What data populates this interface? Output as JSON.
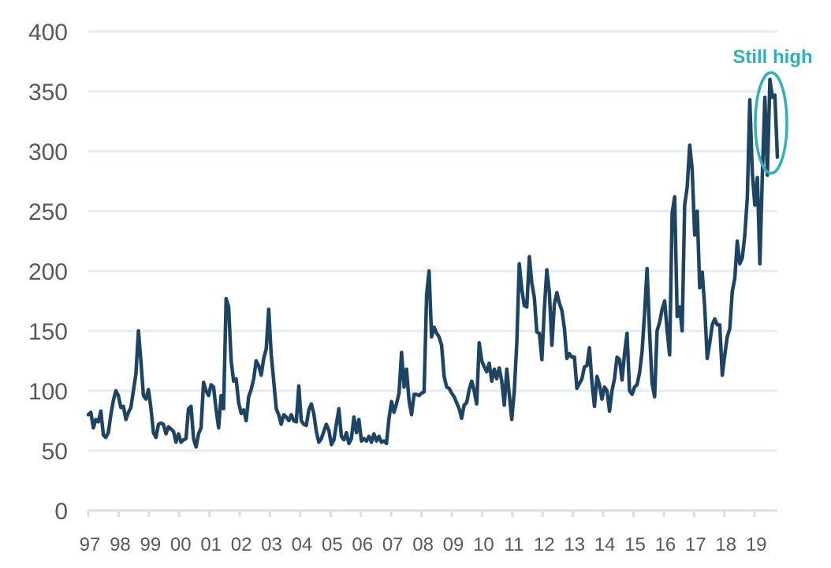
{
  "chart_data": {
    "type": "line",
    "title": "",
    "xlabel": "",
    "ylabel": "",
    "ylim": [
      0,
      400
    ],
    "yticks": [
      0,
      50,
      100,
      150,
      200,
      250,
      300,
      350,
      400
    ],
    "xtick_labels": [
      "97",
      "98",
      "99",
      "00",
      "01",
      "02",
      "03",
      "04",
      "05",
      "06",
      "07",
      "08",
      "09",
      "10",
      "11",
      "12",
      "13",
      "14",
      "15",
      "16",
      "17",
      "18",
      "19"
    ],
    "grid": true,
    "legend": "none",
    "x_start": 1997,
    "x_end": 2019.75,
    "series": [
      {
        "color": "#1d4563",
        "values": [
          80,
          82,
          69,
          76,
          74,
          83,
          63,
          61,
          65,
          80,
          92,
          100,
          96,
          86,
          87,
          76,
          82,
          86,
          100,
          114,
          150,
          125,
          96,
          93,
          101,
          85,
          65,
          61,
          72,
          73,
          72,
          64,
          70,
          68,
          66,
          57,
          64,
          57,
          59,
          60,
          85,
          87,
          60,
          53,
          64,
          69,
          107,
          100,
          96,
          105,
          103,
          84,
          69,
          96,
          85,
          177,
          170,
          125,
          108,
          110,
          90,
          81,
          84,
          75,
          95,
          101,
          110,
          125,
          121,
          113,
          127,
          135,
          168,
          130,
          108,
          85,
          80,
          72,
          80,
          78,
          75,
          80,
          75,
          74,
          104,
          75,
          72,
          71,
          84,
          89,
          81,
          66,
          57,
          60,
          66,
          72,
          67,
          55,
          59,
          72,
          85,
          62,
          59,
          65,
          56,
          60,
          78,
          65,
          76,
          58,
          60,
          58,
          62,
          57,
          64,
          58,
          62,
          57,
          58,
          56,
          77,
          91,
          82,
          89,
          98,
          132,
          103,
          118,
          92,
          80,
          97,
          97,
          96,
          98,
          99,
          180,
          200,
          145,
          153,
          148,
          145,
          138,
          112,
          103,
          102,
          98,
          95,
          90,
          85,
          77,
          88,
          90,
          101,
          108,
          100,
          89,
          140,
          125,
          120,
          116,
          123,
          108,
          118,
          110,
          119,
          108,
          88,
          118,
          97,
          76,
          100,
          140,
          206,
          185,
          171,
          170,
          212,
          190,
          178,
          149,
          148,
          126,
          168,
          201,
          182,
          138,
          172,
          182,
          173,
          167,
          152,
          127,
          131,
          128,
          128,
          102,
          106,
          110,
          120,
          121,
          136,
          107,
          87,
          112,
          105,
          93,
          103,
          100,
          83,
          100,
          110,
          128,
          126,
          109,
          131,
          148,
          100,
          97,
          103,
          105,
          115,
          133,
          165,
          202,
          149,
          106,
          95,
          150,
          157,
          168,
          175,
          150,
          130,
          248,
          262,
          162,
          170,
          150,
          255,
          270,
          305,
          285,
          230,
          250,
          186,
          199,
          170,
          127,
          140,
          155,
          160,
          155,
          155,
          113,
          130,
          145,
          152,
          183,
          194,
          225,
          206,
          211,
          230,
          262,
          343,
          282,
          255,
          278,
          206,
          280,
          345,
          280,
          360,
          345,
          347,
          295
        ]
      }
    ],
    "annotation": {
      "text": "Still high",
      "color": "#2ab3b8"
    }
  }
}
